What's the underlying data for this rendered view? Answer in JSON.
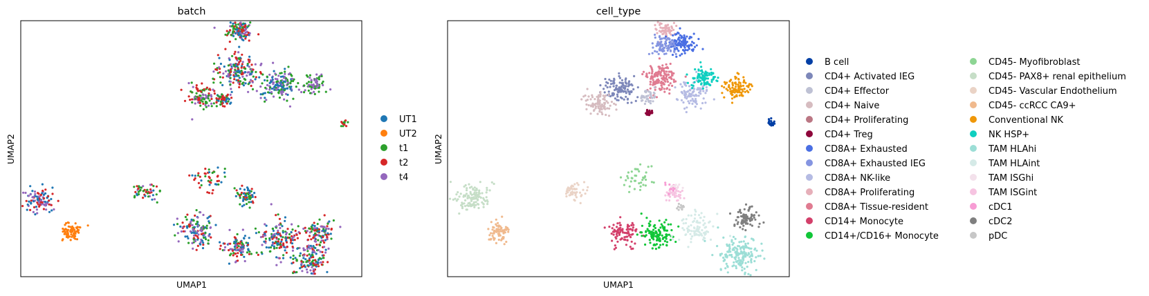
{
  "chart_data": [
    {
      "type": "scatter",
      "title": "batch",
      "xlabel": "UMAP1",
      "ylabel": "UMAP2",
      "ticks": false,
      "legend_position": "right",
      "legend": [
        {
          "label": "UT1",
          "color": "#1f77b4"
        },
        {
          "label": "UT2",
          "color": "#ff7f0e"
        },
        {
          "label": "t1",
          "color": "#2ca02c"
        },
        {
          "label": "t2",
          "color": "#d62728"
        },
        {
          "label": "t4",
          "color": "#9467bd"
        }
      ],
      "clusters": [
        {
          "x": 1.7,
          "y": 9.55,
          "spread": 0.3,
          "n": 120,
          "colors": [
            "#2ca02c",
            "#1f77b4",
            "#9467bd",
            "#d62728"
          ]
        },
        {
          "x": 1.6,
          "y": 7.6,
          "spread": 0.45,
          "n": 180,
          "colors": [
            "#2ca02c",
            "#d62728",
            "#1f77b4",
            "#9467bd"
          ]
        },
        {
          "x": 0.2,
          "y": 6.45,
          "spread": 0.35,
          "n": 100,
          "colors": [
            "#2ca02c",
            "#9467bd",
            "#d62728"
          ]
        },
        {
          "x": 1.0,
          "y": 6.3,
          "spread": 0.2,
          "n": 60,
          "colors": [
            "#2ca02c",
            "#d62728",
            "#1f77b4"
          ]
        },
        {
          "x": 3.2,
          "y": 7.0,
          "spread": 0.4,
          "n": 160,
          "colors": [
            "#9467bd",
            "#1f77b4",
            "#2ca02c"
          ]
        },
        {
          "x": 4.6,
          "y": 7.0,
          "spread": 0.25,
          "n": 70,
          "colors": [
            "#2ca02c",
            "#9467bd"
          ]
        },
        {
          "x": 5.8,
          "y": 5.2,
          "spread": 0.08,
          "n": 15,
          "colors": [
            "#2ca02c",
            "#d62728"
          ]
        },
        {
          "x": -6.2,
          "y": 1.6,
          "spread": 0.35,
          "n": 110,
          "colors": [
            "#d62728",
            "#9467bd",
            "#1f77b4"
          ]
        },
        {
          "x": -5.0,
          "y": 0.1,
          "spread": 0.25,
          "n": 70,
          "colors": [
            "#ff7f0e"
          ]
        },
        {
          "x": -2.0,
          "y": 2.0,
          "spread": 0.3,
          "n": 50,
          "colors": [
            "#1f77b4",
            "#d62728",
            "#2ca02c",
            "#9467bd"
          ]
        },
        {
          "x": 0.5,
          "y": 2.6,
          "spread": 0.35,
          "n": 45,
          "colors": [
            "#2ca02c",
            "#1f77b4",
            "#d62728"
          ]
        },
        {
          "x": 1.9,
          "y": 1.8,
          "spread": 0.25,
          "n": 60,
          "colors": [
            "#1f77b4",
            "#2ca02c",
            "#d62728"
          ]
        },
        {
          "x": 0.0,
          "y": 0.1,
          "spread": 0.45,
          "n": 140,
          "colors": [
            "#9467bd",
            "#d62728",
            "#1f77b4",
            "#2ca02c"
          ]
        },
        {
          "x": 1.6,
          "y": -0.6,
          "spread": 0.35,
          "n": 100,
          "colors": [
            "#d62728",
            "#1f77b4",
            "#2ca02c",
            "#9467bd"
          ]
        },
        {
          "x": 3.3,
          "y": -0.2,
          "spread": 0.5,
          "n": 160,
          "colors": [
            "#d62728",
            "#1f77b4",
            "#2ca02c",
            "#9467bd"
          ]
        },
        {
          "x": 4.8,
          "y": 0.1,
          "spread": 0.35,
          "n": 100,
          "colors": [
            "#d62728",
            "#9467bd",
            "#1f77b4",
            "#2ca02c"
          ]
        },
        {
          "x": 4.5,
          "y": -1.2,
          "spread": 0.45,
          "n": 140,
          "colors": [
            "#d62728",
            "#1f77b4",
            "#9467bd",
            "#2ca02c"
          ]
        }
      ]
    },
    {
      "type": "scatter",
      "title": "cell_type",
      "xlabel": "UMAP1",
      "ylabel": "UMAP2",
      "ticks": false,
      "legend_position": "right",
      "legend": [
        {
          "label": "B cell",
          "color": "#023fa5"
        },
        {
          "label": "CD4+ Activated IEG",
          "color": "#7d87b9"
        },
        {
          "label": "CD4+ Effector",
          "color": "#bec1d4"
        },
        {
          "label": "CD4+ Naive",
          "color": "#d6bcc0"
        },
        {
          "label": "CD4+ Proliferating",
          "color": "#bb7784"
        },
        {
          "label": "CD4+ Treg",
          "color": "#8e063b"
        },
        {
          "label": "CD8A+ Exhausted",
          "color": "#4a6fe3"
        },
        {
          "label": "CD8A+ Exhausted IEG",
          "color": "#8595e1"
        },
        {
          "label": "CD8A+ NK-like",
          "color": "#b5bbe3"
        },
        {
          "label": "CD8A+ Proliferating",
          "color": "#e6afb9"
        },
        {
          "label": "CD8A+ Tissue-resident",
          "color": "#e07b91"
        },
        {
          "label": "CD14+ Monocyte",
          "color": "#d33f6a"
        },
        {
          "label": "CD14+/CD16+ Monocyte",
          "color": "#11c638"
        },
        {
          "label": "CD45- Myofibroblast",
          "color": "#8dd593"
        },
        {
          "label": "CD45- PAX8+ renal epithelium",
          "color": "#c6dec7"
        },
        {
          "label": "CD45- Vascular Endothelium",
          "color": "#ead3c6"
        },
        {
          "label": "CD45- ccRCC CA9+",
          "color": "#f0b98d"
        },
        {
          "label": "Conventional NK",
          "color": "#ef9708"
        },
        {
          "label": "NK HSP+",
          "color": "#0fcfc0"
        },
        {
          "label": "TAM HLAhi",
          "color": "#9cded6"
        },
        {
          "label": "TAM HLAint",
          "color": "#d5eae7"
        },
        {
          "label": "TAM ISGhi",
          "color": "#f3e1eb"
        },
        {
          "label": "TAM ISGint",
          "color": "#f6c4e1"
        },
        {
          "label": "cDC1",
          "color": "#f79cd4"
        },
        {
          "label": "cDC2",
          "color": "#7f7f7f"
        },
        {
          "label": "pDC",
          "color": "#c7c7c7"
        }
      ],
      "clusters": [
        {
          "x": 1.6,
          "y": 9.6,
          "spread": 0.25,
          "n": 60,
          "colors": [
            "#e6afb9"
          ]
        },
        {
          "x": 2.3,
          "y": 8.9,
          "spread": 0.3,
          "n": 110,
          "colors": [
            "#4a6fe3"
          ]
        },
        {
          "x": 1.5,
          "y": 8.8,
          "spread": 0.28,
          "n": 80,
          "colors": [
            "#8595e1"
          ]
        },
        {
          "x": 1.4,
          "y": 7.3,
          "spread": 0.38,
          "n": 150,
          "colors": [
            "#e07b91"
          ]
        },
        {
          "x": -0.2,
          "y": 6.8,
          "spread": 0.35,
          "n": 120,
          "colors": [
            "#7d87b9"
          ]
        },
        {
          "x": 0.9,
          "y": 6.4,
          "spread": 0.2,
          "n": 40,
          "colors": [
            "#bec1d4"
          ]
        },
        {
          "x": -1.0,
          "y": 6.1,
          "spread": 0.3,
          "n": 90,
          "colors": [
            "#d6bcc0"
          ]
        },
        {
          "x": 0.95,
          "y": 5.7,
          "spread": 0.08,
          "n": 25,
          "colors": [
            "#8e063b"
          ]
        },
        {
          "x": 2.7,
          "y": 6.6,
          "spread": 0.35,
          "n": 100,
          "colors": [
            "#b5bbe3"
          ]
        },
        {
          "x": 3.1,
          "y": 7.3,
          "spread": 0.3,
          "n": 90,
          "colors": [
            "#0fcfc0"
          ]
        },
        {
          "x": 4.5,
          "y": 6.8,
          "spread": 0.3,
          "n": 100,
          "colors": [
            "#ef9708"
          ]
        },
        {
          "x": 5.8,
          "y": 5.2,
          "spread": 0.08,
          "n": 20,
          "colors": [
            "#023fa5"
          ]
        },
        {
          "x": -6.0,
          "y": 1.7,
          "spread": 0.4,
          "n": 120,
          "colors": [
            "#c6dec7"
          ]
        },
        {
          "x": -5.0,
          "y": 0.1,
          "spread": 0.25,
          "n": 70,
          "colors": [
            "#f0b98d"
          ]
        },
        {
          "x": -2.0,
          "y": 2.0,
          "spread": 0.3,
          "n": 50,
          "colors": [
            "#ead3c6"
          ]
        },
        {
          "x": 0.5,
          "y": 2.6,
          "spread": 0.35,
          "n": 40,
          "colors": [
            "#8dd593"
          ]
        },
        {
          "x": 1.9,
          "y": 1.9,
          "spread": 0.22,
          "n": 45,
          "colors": [
            "#f6c4e1"
          ]
        },
        {
          "x": 1.8,
          "y": 2.1,
          "spread": 0.15,
          "n": 12,
          "colors": [
            "#f79cd4"
          ]
        },
        {
          "x": 0.0,
          "y": 0.1,
          "spread": 0.35,
          "n": 90,
          "colors": [
            "#d33f6a"
          ]
        },
        {
          "x": 1.3,
          "y": 0.0,
          "spread": 0.35,
          "n": 120,
          "colors": [
            "#11c638"
          ]
        },
        {
          "x": 2.8,
          "y": 0.3,
          "spread": 0.4,
          "n": 90,
          "colors": [
            "#d5eae7"
          ]
        },
        {
          "x": 4.8,
          "y": 0.7,
          "spread": 0.3,
          "n": 80,
          "colors": [
            "#7f7f7f"
          ]
        },
        {
          "x": 4.5,
          "y": -1.0,
          "spread": 0.5,
          "n": 170,
          "colors": [
            "#9cded6"
          ]
        },
        {
          "x": 2.2,
          "y": 1.2,
          "spread": 0.15,
          "n": 12,
          "colors": [
            "#c7c7c7"
          ]
        },
        {
          "x": 2.0,
          "y": 2.2,
          "spread": 0.12,
          "n": 10,
          "colors": [
            "#f3e1eb"
          ]
        }
      ]
    }
  ]
}
